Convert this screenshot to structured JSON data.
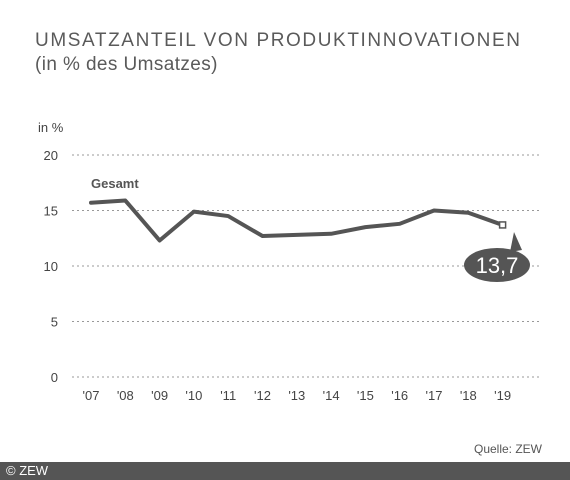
{
  "title": "UMSATZANTEIL VON PRODUKTINNOVATIONEN",
  "subtitle": "(in % des Umsatzes)",
  "source": "Quelle: ZEW",
  "copyright": "© ZEW",
  "chart_data": {
    "type": "line",
    "ylabel": "in %",
    "ylim": [
      0,
      20
    ],
    "yticks": [
      0,
      5,
      10,
      15,
      20
    ],
    "grid": true,
    "categories": [
      "'07",
      "'08",
      "'09",
      "'10",
      "'11",
      "'12",
      "'13",
      "'14",
      "'15",
      "'16",
      "'17",
      "'18",
      "'19"
    ],
    "series": [
      {
        "name": "Gesamt",
        "values": [
          15.7,
          15.9,
          12.3,
          14.9,
          14.5,
          12.7,
          12.8,
          12.9,
          13.5,
          13.8,
          15.0,
          14.8,
          13.7
        ]
      }
    ],
    "annotation": "13,7",
    "colors": {
      "line": "#555555",
      "grid": "#999999",
      "badge": "#555555"
    }
  }
}
